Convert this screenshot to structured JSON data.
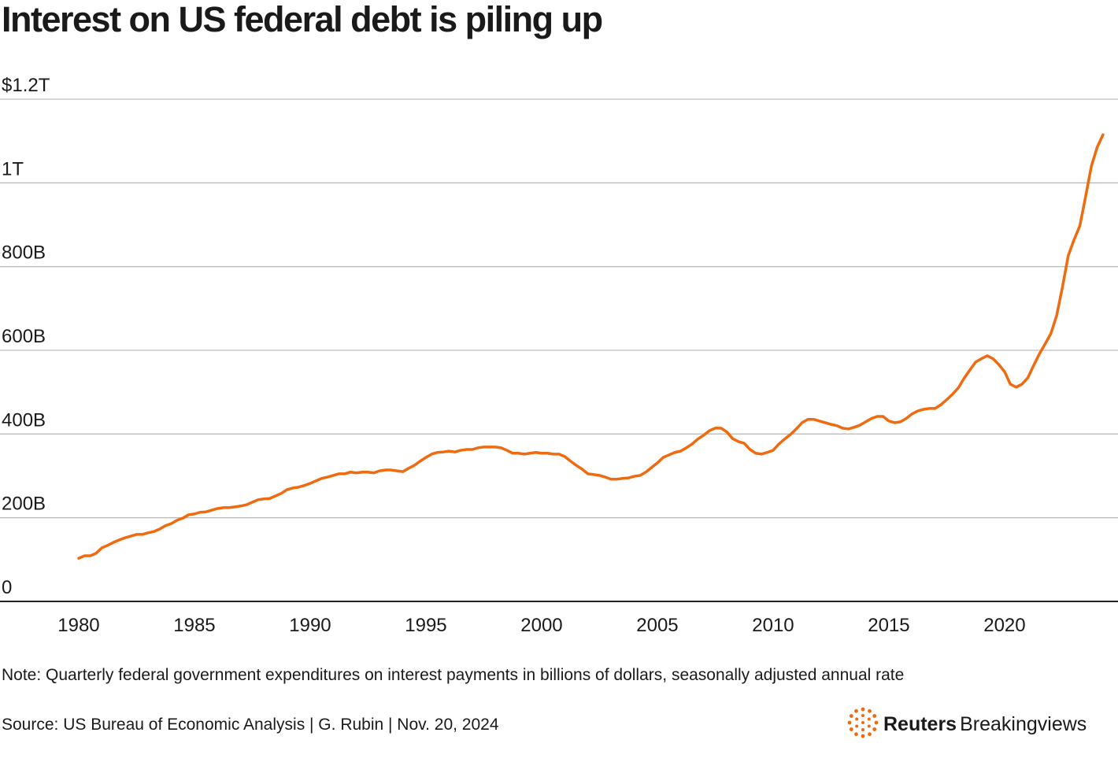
{
  "chart_data": {
    "type": "line",
    "title": "Interest on US federal debt is piling up",
    "note": "Note: Quarterly federal government expenditures on interest payments in billions of dollars, seasonally adjusted annual rate",
    "source": "Source: US Bureau of Economic Analysis | G. Rubin | Nov. 20, 2024",
    "brand": {
      "name": "Reuters",
      "product": "Breakingviews"
    },
    "color": "#f06a0f",
    "x": [
      1980,
      1980.25,
      1980.5,
      1980.75,
      1981,
      1981.25,
      1981.5,
      1981.75,
      1982,
      1982.25,
      1982.5,
      1982.75,
      1983,
      1983.25,
      1983.5,
      1983.75,
      1984,
      1984.25,
      1984.5,
      1984.75,
      1985,
      1985.25,
      1985.5,
      1985.75,
      1986,
      1986.25,
      1986.5,
      1986.75,
      1987,
      1987.25,
      1987.5,
      1987.75,
      1988,
      1988.25,
      1988.5,
      1988.75,
      1989,
      1989.25,
      1989.5,
      1989.75,
      1990,
      1990.25,
      1990.5,
      1990.75,
      1991,
      1991.25,
      1991.5,
      1991.75,
      1992,
      1992.25,
      1992.5,
      1992.75,
      1993,
      1993.25,
      1993.5,
      1993.75,
      1994,
      1994.25,
      1994.5,
      1994.75,
      1995,
      1995.25,
      1995.5,
      1995.75,
      1996,
      1996.25,
      1996.5,
      1996.75,
      1997,
      1997.25,
      1997.5,
      1997.75,
      1998,
      1998.25,
      1998.5,
      1998.75,
      1999,
      1999.25,
      1999.5,
      1999.75,
      2000,
      2000.25,
      2000.5,
      2000.75,
      2001,
      2001.25,
      2001.5,
      2001.75,
      2002,
      2002.25,
      2002.5,
      2002.75,
      2003,
      2003.25,
      2003.5,
      2003.75,
      2004,
      2004.25,
      2004.5,
      2004.75,
      2005,
      2005.25,
      2005.5,
      2005.75,
      2006,
      2006.25,
      2006.5,
      2006.75,
      2007,
      2007.25,
      2007.5,
      2007.75,
      2008,
      2008.25,
      2008.5,
      2008.75,
      2009,
      2009.25,
      2009.5,
      2009.75,
      2010,
      2010.25,
      2010.5,
      2010.75,
      2011,
      2011.25,
      2011.5,
      2011.75,
      2012,
      2012.25,
      2012.5,
      2012.75,
      2013,
      2013.25,
      2013.5,
      2013.75,
      2014,
      2014.25,
      2014.5,
      2014.75,
      2015,
      2015.25,
      2015.5,
      2015.75,
      2016,
      2016.25,
      2016.5,
      2016.75,
      2017,
      2017.25,
      2017.5,
      2017.75,
      2018,
      2018.25,
      2018.5,
      2018.75,
      2019,
      2019.25,
      2019.5,
      2019.75,
      2020,
      2020.25,
      2020.5,
      2020.75,
      2021,
      2021.25,
      2021.5,
      2021.75,
      2022,
      2022.25,
      2022.5,
      2022.75,
      2023,
      2023.25,
      2023.5,
      2023.75,
      2024,
      2024.25
    ],
    "values": [
      103,
      109,
      109,
      115,
      128,
      134,
      141,
      147,
      152,
      156,
      160,
      160,
      164,
      167,
      173,
      181,
      186,
      194,
      199,
      207,
      209,
      213,
      214,
      218,
      222,
      224,
      224,
      226,
      228,
      231,
      237,
      243,
      245,
      246,
      252,
      258,
      267,
      271,
      273,
      277,
      282,
      288,
      294,
      297,
      301,
      305,
      305,
      309,
      307,
      309,
      309,
      307,
      312,
      314,
      314,
      312,
      310,
      318,
      325,
      335,
      344,
      352,
      356,
      357,
      359,
      357,
      361,
      363,
      363,
      367,
      369,
      369,
      369,
      367,
      361,
      354,
      354,
      352,
      354,
      356,
      354,
      354,
      352,
      352,
      346,
      335,
      325,
      316,
      305,
      303,
      301,
      297,
      292,
      292,
      294,
      295,
      299,
      301,
      309,
      320,
      331,
      344,
      350,
      356,
      359,
      367,
      376,
      388,
      397,
      408,
      414,
      414,
      405,
      389,
      382,
      378,
      363,
      354,
      352,
      356,
      361,
      376,
      388,
      399,
      412,
      427,
      435,
      435,
      431,
      427,
      423,
      420,
      414,
      412,
      416,
      421,
      429,
      437,
      442,
      442,
      431,
      427,
      429,
      437,
      448,
      455,
      459,
      461,
      461,
      470,
      482,
      495,
      510,
      533,
      553,
      572,
      580,
      587,
      580,
      566,
      549,
      519,
      512,
      519,
      534,
      563,
      591,
      615,
      640,
      683,
      751,
      826,
      864,
      897,
      967,
      1040,
      1085,
      1115
    ],
    "xlim": [
      1976.6,
      2024.9
    ],
    "xticks": [
      1980,
      1985,
      1990,
      1995,
      2000,
      2005,
      2010,
      2015,
      2020
    ],
    "ylim": [
      0,
      1200
    ],
    "yticks": [
      0,
      {
        "value": 200,
        "label": "200B"
      },
      {
        "value": 400,
        "label": "400B"
      },
      {
        "value": 600,
        "label": "600B"
      },
      {
        "value": 800,
        "label": "800B"
      },
      {
        "value": 1000,
        "label": "1T"
      },
      {
        "value": 1200,
        "label": "$1.2T"
      }
    ],
    "grid": true
  }
}
